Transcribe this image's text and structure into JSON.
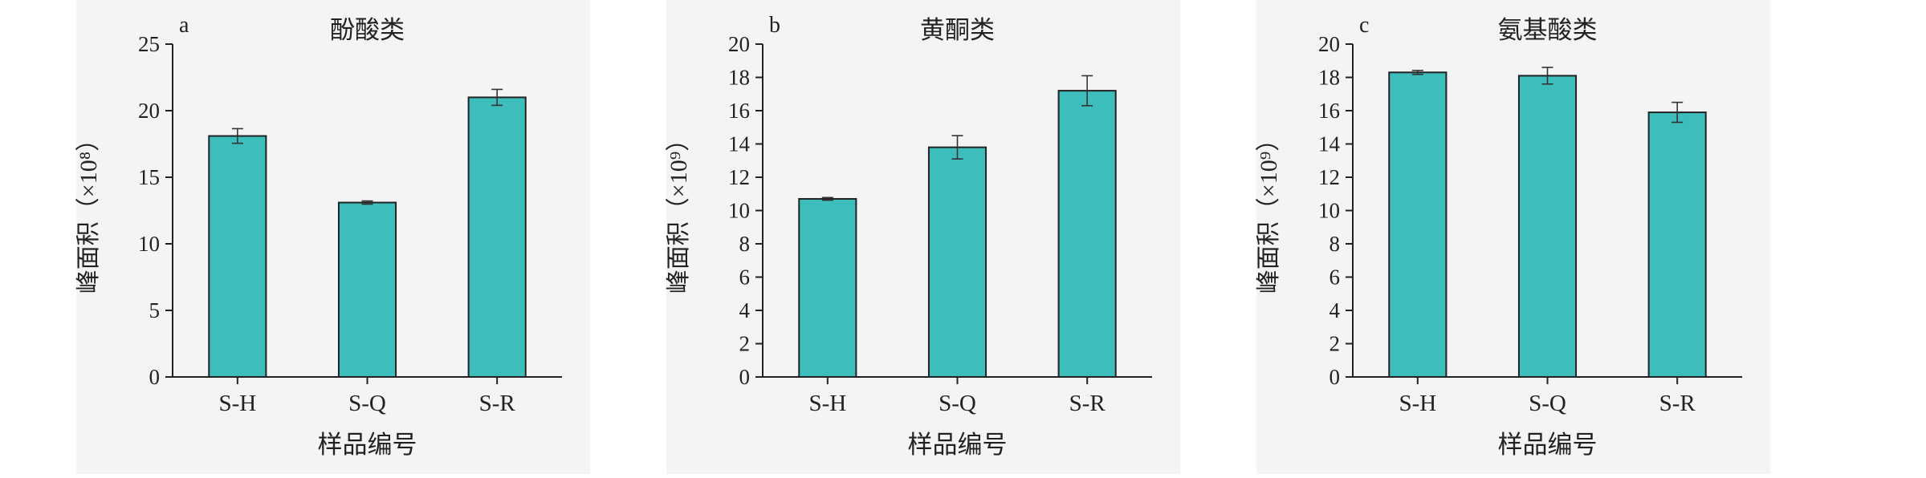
{
  "chart_data": [
    {
      "type": "bar",
      "panel_letter": "a",
      "title": "酚酸类",
      "xlabel": "样品编号",
      "ylabel": "峰面积（×10⁸）",
      "categories": [
        "S-H",
        "S-Q",
        "S-R"
      ],
      "values": [
        18.1,
        13.1,
        21.0
      ],
      "errors": [
        0.55,
        0.12,
        0.6
      ],
      "ylim": [
        0,
        25
      ],
      "yticks": [
        "0",
        "5",
        "10",
        "15",
        "20",
        "25"
      ],
      "bar_color": "#3dbdbb"
    },
    {
      "type": "bar",
      "panel_letter": "b",
      "title": "黄酮类",
      "xlabel": "样品编号",
      "ylabel": "峰面积（×10⁹）",
      "categories": [
        "S-H",
        "S-Q",
        "S-R"
      ],
      "values": [
        10.7,
        13.8,
        17.2
      ],
      "errors": [
        0.08,
        0.7,
        0.9
      ],
      "ylim": [
        0,
        20
      ],
      "yticks": [
        "0",
        "2",
        "4",
        "6",
        "8",
        "10",
        "12",
        "14",
        "16",
        "18",
        "20"
      ],
      "bar_color": "#3dbdbb"
    },
    {
      "type": "bar",
      "panel_letter": "c",
      "title": "氨基酸类",
      "xlabel": "样品编号",
      "ylabel": "峰面积（×10⁹）",
      "categories": [
        "S-H",
        "S-Q",
        "S-R"
      ],
      "values": [
        18.3,
        18.1,
        15.9
      ],
      "errors": [
        0.12,
        0.5,
        0.6
      ],
      "ylim": [
        0,
        20
      ],
      "yticks": [
        "0",
        "2",
        "4",
        "6",
        "8",
        "10",
        "12",
        "14",
        "16",
        "18",
        "20"
      ],
      "bar_color": "#3dbdbb"
    }
  ]
}
